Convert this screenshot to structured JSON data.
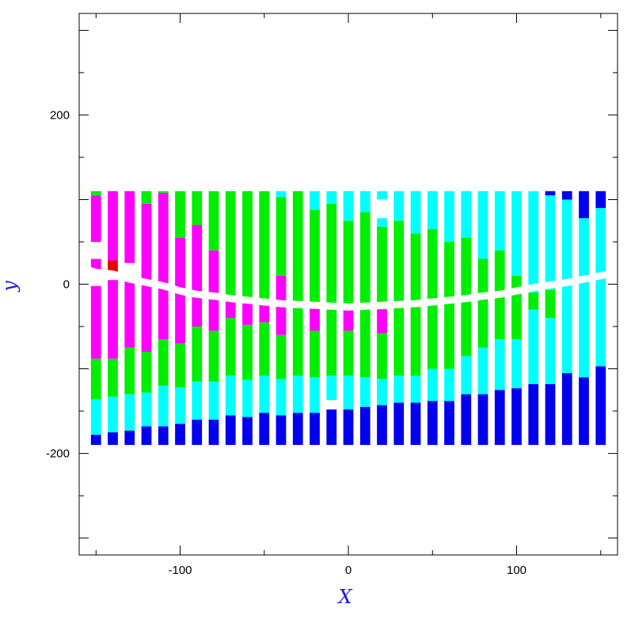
{
  "chart_data": {
    "type": "bar",
    "title": "",
    "xlabel": "X",
    "ylabel": "y",
    "label_color": "#1a1ad6",
    "xlim": [
      -160,
      160
    ],
    "ylim": [
      -320,
      320
    ],
    "x_ticks_labeled": [
      -100,
      0,
      100
    ],
    "y_ticks_labeled": [
      -200,
      0,
      200
    ],
    "x_tick_labels": [
      "-100",
      "0",
      "100"
    ],
    "y_tick_labels": [
      "-200",
      "0",
      "200"
    ],
    "grid": false,
    "legend": "none",
    "bar_width_data": 6,
    "colors": {
      "blue": "#0000ee",
      "cyan": "#00ffff",
      "green": "#00ee00",
      "magenta": "#ff00ff",
      "red": "#ee0000",
      "white": "#ffffff"
    },
    "columns": [
      {
        "x": -150,
        "segments": [
          [
            -190,
            -178,
            "blue"
          ],
          [
            -178,
            -136,
            "cyan"
          ],
          [
            -136,
            -88,
            "green"
          ],
          [
            -88,
            -2,
            "magenta"
          ],
          [
            -2,
            12,
            "white"
          ],
          [
            12,
            30,
            "magenta"
          ],
          [
            30,
            50,
            "white"
          ],
          [
            50,
            105,
            "magenta"
          ],
          [
            105,
            110,
            "green"
          ]
        ]
      },
      {
        "x": -140,
        "segments": [
          [
            -190,
            -175,
            "blue"
          ],
          [
            -175,
            -133,
            "cyan"
          ],
          [
            -133,
            -88,
            "green"
          ],
          [
            -88,
            5,
            "magenta"
          ],
          [
            5,
            10,
            "white"
          ],
          [
            10,
            28,
            "red"
          ],
          [
            28,
            110,
            "magenta"
          ]
        ]
      },
      {
        "x": -130,
        "segments": [
          [
            -190,
            -173,
            "blue"
          ],
          [
            -173,
            -130,
            "cyan"
          ],
          [
            -130,
            -75,
            "green"
          ],
          [
            -75,
            5,
            "magenta"
          ],
          [
            5,
            25,
            "white"
          ],
          [
            25,
            110,
            "magenta"
          ]
        ]
      },
      {
        "x": -120,
        "segments": [
          [
            -190,
            -168,
            "blue"
          ],
          [
            -168,
            -128,
            "cyan"
          ],
          [
            -128,
            -80,
            "green"
          ],
          [
            -80,
            0,
            "magenta"
          ],
          [
            0,
            5,
            "red"
          ],
          [
            5,
            95,
            "magenta"
          ],
          [
            95,
            110,
            "green"
          ]
        ]
      },
      {
        "x": -110,
        "segments": [
          [
            -190,
            -168,
            "blue"
          ],
          [
            -168,
            -120,
            "cyan"
          ],
          [
            -120,
            -65,
            "green"
          ],
          [
            -65,
            -5,
            "magenta"
          ],
          [
            -5,
            108,
            "magenta"
          ],
          [
            108,
            110,
            "green"
          ]
        ]
      },
      {
        "x": -100,
        "segments": [
          [
            -190,
            -165,
            "blue"
          ],
          [
            -165,
            -122,
            "cyan"
          ],
          [
            -122,
            -70,
            "green"
          ],
          [
            -70,
            -10,
            "magenta"
          ],
          [
            -10,
            55,
            "magenta"
          ],
          [
            55,
            110,
            "green"
          ]
        ]
      },
      {
        "x": -90,
        "segments": [
          [
            -190,
            -160,
            "blue"
          ],
          [
            -160,
            -115,
            "cyan"
          ],
          [
            -115,
            -50,
            "green"
          ],
          [
            -50,
            -15,
            "magenta"
          ],
          [
            -15,
            70,
            "magenta"
          ],
          [
            70,
            110,
            "green"
          ]
        ]
      },
      {
        "x": -80,
        "segments": [
          [
            -190,
            -160,
            "blue"
          ],
          [
            -160,
            -115,
            "cyan"
          ],
          [
            -115,
            -55,
            "green"
          ],
          [
            -55,
            -18,
            "magenta"
          ],
          [
            -18,
            40,
            "magenta"
          ],
          [
            40,
            110,
            "green"
          ]
        ]
      },
      {
        "x": -70,
        "segments": [
          [
            -190,
            -155,
            "blue"
          ],
          [
            -155,
            -108,
            "cyan"
          ],
          [
            -108,
            -40,
            "green"
          ],
          [
            -40,
            -20,
            "magenta"
          ],
          [
            -20,
            110,
            "green"
          ]
        ]
      },
      {
        "x": -60,
        "segments": [
          [
            -190,
            -157,
            "blue"
          ],
          [
            -157,
            -113,
            "cyan"
          ],
          [
            -113,
            -48,
            "green"
          ],
          [
            -48,
            -22,
            "magenta"
          ],
          [
            -22,
            110,
            "green"
          ]
        ]
      },
      {
        "x": -50,
        "segments": [
          [
            -190,
            -152,
            "blue"
          ],
          [
            -152,
            -108,
            "cyan"
          ],
          [
            -108,
            -45,
            "green"
          ],
          [
            -45,
            -24,
            "magenta"
          ],
          [
            -24,
            110,
            "green"
          ]
        ]
      },
      {
        "x": -40,
        "segments": [
          [
            -190,
            -155,
            "blue"
          ],
          [
            -155,
            -112,
            "cyan"
          ],
          [
            -112,
            -60,
            "green"
          ],
          [
            -60,
            -26,
            "magenta"
          ],
          [
            -26,
            10,
            "magenta"
          ],
          [
            10,
            103,
            "green"
          ],
          [
            103,
            110,
            "cyan"
          ]
        ]
      },
      {
        "x": -30,
        "segments": [
          [
            -190,
            -152,
            "blue"
          ],
          [
            -152,
            -108,
            "cyan"
          ],
          [
            -108,
            -27,
            "green"
          ],
          [
            -27,
            110,
            "green"
          ]
        ]
      },
      {
        "x": -20,
        "segments": [
          [
            -190,
            -152,
            "blue"
          ],
          [
            -152,
            -110,
            "cyan"
          ],
          [
            -110,
            -55,
            "green"
          ],
          [
            -55,
            -28,
            "magenta"
          ],
          [
            -28,
            88,
            "green"
          ],
          [
            88,
            110,
            "cyan"
          ]
        ]
      },
      {
        "x": -10,
        "segments": [
          [
            -190,
            -148,
            "blue"
          ],
          [
            -148,
            -137,
            "white"
          ],
          [
            -137,
            -108,
            "cyan"
          ],
          [
            -108,
            -30,
            "green"
          ],
          [
            -30,
            95,
            "green"
          ],
          [
            95,
            110,
            "cyan"
          ]
        ]
      },
      {
        "x": 0,
        "segments": [
          [
            -190,
            -148,
            "blue"
          ],
          [
            -148,
            -108,
            "cyan"
          ],
          [
            -108,
            -55,
            "green"
          ],
          [
            -55,
            -30,
            "magenta"
          ],
          [
            -30,
            75,
            "green"
          ],
          [
            75,
            110,
            "cyan"
          ]
        ]
      },
      {
        "x": 10,
        "segments": [
          [
            -190,
            -145,
            "blue"
          ],
          [
            -145,
            -110,
            "cyan"
          ],
          [
            -110,
            -30,
            "green"
          ],
          [
            -30,
            85,
            "green"
          ],
          [
            85,
            110,
            "cyan"
          ]
        ]
      },
      {
        "x": 20,
        "segments": [
          [
            -190,
            -143,
            "blue"
          ],
          [
            -143,
            -112,
            "cyan"
          ],
          [
            -112,
            -58,
            "green"
          ],
          [
            -58,
            -30,
            "magenta"
          ],
          [
            -30,
            68,
            "green"
          ],
          [
            68,
            78,
            "cyan"
          ],
          [
            78,
            100,
            "white"
          ],
          [
            100,
            110,
            "cyan"
          ]
        ]
      },
      {
        "x": 30,
        "segments": [
          [
            -190,
            -140,
            "blue"
          ],
          [
            -140,
            -108,
            "cyan"
          ],
          [
            -108,
            -28,
            "green"
          ],
          [
            -28,
            75,
            "green"
          ],
          [
            75,
            110,
            "cyan"
          ]
        ]
      },
      {
        "x": 40,
        "segments": [
          [
            -190,
            -140,
            "blue"
          ],
          [
            -140,
            -108,
            "cyan"
          ],
          [
            -108,
            -27,
            "green"
          ],
          [
            -27,
            60,
            "green"
          ],
          [
            60,
            110,
            "cyan"
          ]
        ]
      },
      {
        "x": 50,
        "segments": [
          [
            -190,
            -138,
            "blue"
          ],
          [
            -138,
            -100,
            "cyan"
          ],
          [
            -100,
            -25,
            "green"
          ],
          [
            -25,
            65,
            "green"
          ],
          [
            65,
            110,
            "cyan"
          ]
        ]
      },
      {
        "x": 60,
        "segments": [
          [
            -190,
            -138,
            "blue"
          ],
          [
            -138,
            -100,
            "cyan"
          ],
          [
            -100,
            -22,
            "green"
          ],
          [
            -22,
            50,
            "green"
          ],
          [
            50,
            110,
            "cyan"
          ]
        ]
      },
      {
        "x": 70,
        "segments": [
          [
            -190,
            -130,
            "blue"
          ],
          [
            -130,
            -85,
            "cyan"
          ],
          [
            -85,
            -20,
            "green"
          ],
          [
            -20,
            55,
            "green"
          ],
          [
            55,
            110,
            "cyan"
          ]
        ]
      },
      {
        "x": 80,
        "segments": [
          [
            -190,
            -130,
            "blue"
          ],
          [
            -130,
            -75,
            "cyan"
          ],
          [
            -75,
            -18,
            "green"
          ],
          [
            -18,
            30,
            "green"
          ],
          [
            30,
            110,
            "cyan"
          ]
        ]
      },
      {
        "x": 90,
        "segments": [
          [
            -190,
            -125,
            "blue"
          ],
          [
            -125,
            -65,
            "cyan"
          ],
          [
            -65,
            -15,
            "green"
          ],
          [
            -15,
            40,
            "green"
          ],
          [
            40,
            110,
            "cyan"
          ]
        ]
      },
      {
        "x": 100,
        "segments": [
          [
            -190,
            -123,
            "blue"
          ],
          [
            -123,
            -65,
            "cyan"
          ],
          [
            -65,
            -12,
            "green"
          ],
          [
            -12,
            10,
            "green"
          ],
          [
            10,
            110,
            "cyan"
          ]
        ]
      },
      {
        "x": 110,
        "segments": [
          [
            -190,
            -118,
            "blue"
          ],
          [
            -118,
            -30,
            "cyan"
          ],
          [
            -30,
            -10,
            "green"
          ],
          [
            -10,
            110,
            "cyan"
          ]
        ]
      },
      {
        "x": 120,
        "segments": [
          [
            -190,
            -118,
            "blue"
          ],
          [
            -118,
            -40,
            "cyan"
          ],
          [
            -40,
            -7,
            "green"
          ],
          [
            -7,
            105,
            "cyan"
          ],
          [
            105,
            110,
            "blue"
          ]
        ]
      },
      {
        "x": 130,
        "segments": [
          [
            -190,
            -105,
            "blue"
          ],
          [
            -105,
            -5,
            "cyan"
          ],
          [
            -5,
            100,
            "cyan"
          ],
          [
            100,
            110,
            "blue"
          ]
        ]
      },
      {
        "x": 140,
        "segments": [
          [
            -190,
            -110,
            "blue"
          ],
          [
            -110,
            5,
            "cyan"
          ],
          [
            5,
            78,
            "cyan"
          ],
          [
            78,
            110,
            "blue"
          ]
        ]
      },
      {
        "x": 150,
        "segments": [
          [
            -190,
            -97,
            "blue"
          ],
          [
            -97,
            8,
            "cyan"
          ],
          [
            8,
            90,
            "cyan"
          ],
          [
            90,
            110,
            "blue"
          ]
        ]
      }
    ],
    "gap_band": [
      [
        -160,
        20
      ],
      [
        -150,
        14
      ],
      [
        -140,
        12
      ],
      [
        -130,
        6
      ],
      [
        -120,
        2
      ],
      [
        -110,
        -2
      ],
      [
        -100,
        -8
      ],
      [
        -90,
        -12
      ],
      [
        -80,
        -14
      ],
      [
        -70,
        -17
      ],
      [
        -60,
        -19
      ],
      [
        -50,
        -21
      ],
      [
        -40,
        -23
      ],
      [
        -30,
        -24
      ],
      [
        -20,
        -25
      ],
      [
        -10,
        -26
      ],
      [
        0,
        -27
      ],
      [
        10,
        -26
      ],
      [
        20,
        -25
      ],
      [
        30,
        -24
      ],
      [
        40,
        -23
      ],
      [
        50,
        -21
      ],
      [
        60,
        -19
      ],
      [
        70,
        -17
      ],
      [
        80,
        -14
      ],
      [
        90,
        -12
      ],
      [
        100,
        -8
      ],
      [
        110,
        -4
      ],
      [
        120,
        -1
      ],
      [
        130,
        2
      ],
      [
        140,
        6
      ],
      [
        150,
        10
      ],
      [
        160,
        14
      ]
    ]
  }
}
